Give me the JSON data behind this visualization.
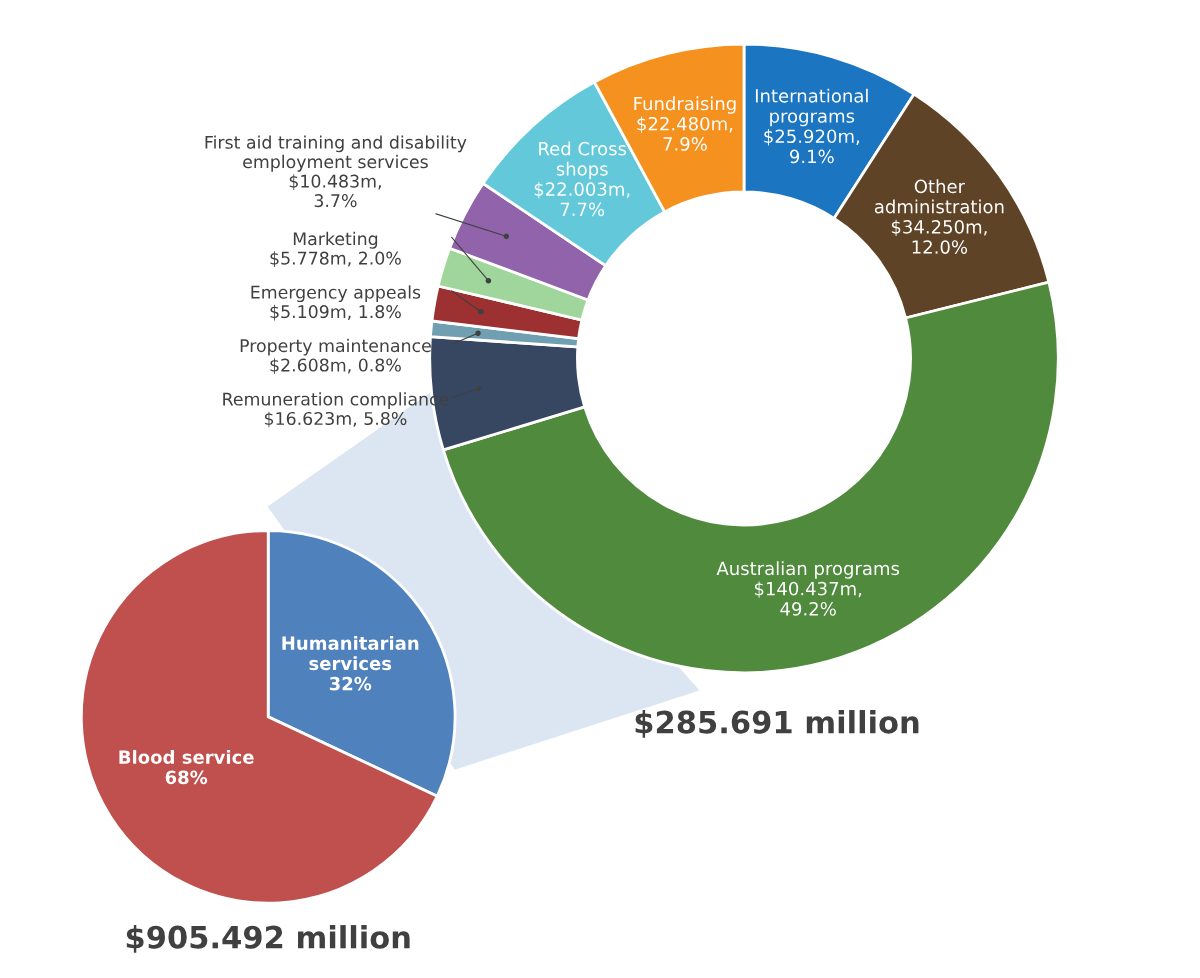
{
  "chart_data": [
    {
      "type": "donut",
      "title": "$285.691 million",
      "categories": [
        "International\nprograms",
        "Other\nadministration",
        "Australian programs",
        "Remuneration compliance",
        "Property maintenance",
        "Emergency appeals",
        "Marketing",
        "First aid training and disability\nemployment services",
        "Red Cross\nshops",
        "Fundraising"
      ],
      "values": [
        9.1,
        12.0,
        49.2,
        5.8,
        0.8,
        1.8,
        2.0,
        3.7,
        7.7,
        7.9
      ],
      "colors": [
        "#1b75c1",
        "#5f4326",
        "#4f8a3d",
        "#374762",
        "#6f9fb0",
        "#9d3131",
        "#a0d59b",
        "#9063ab",
        "#63c9da",
        "#f5921f"
      ],
      "value_labels": [
        "$25.920m,\n9.1%",
        "$34.250m,\n12.0%",
        "$140.437m,\n49.2%",
        "$16.623m, 5.8%",
        "$2.608m, 0.8%",
        "$5.109m, 1.8%",
        "$5.778m, 2.0%",
        "$10.483m,\n3.7%",
        "$22.003m,\n7.7%",
        "$22.480m,\n7.9%"
      ]
    },
    {
      "type": "pie",
      "title": "$905.492 million",
      "categories": [
        "Humanitarian\nservices",
        "Blood service"
      ],
      "values": [
        32,
        68
      ],
      "colors": [
        "#4f81bd",
        "#c0504d"
      ],
      "value_labels": [
        "32%",
        "68%"
      ]
    }
  ]
}
